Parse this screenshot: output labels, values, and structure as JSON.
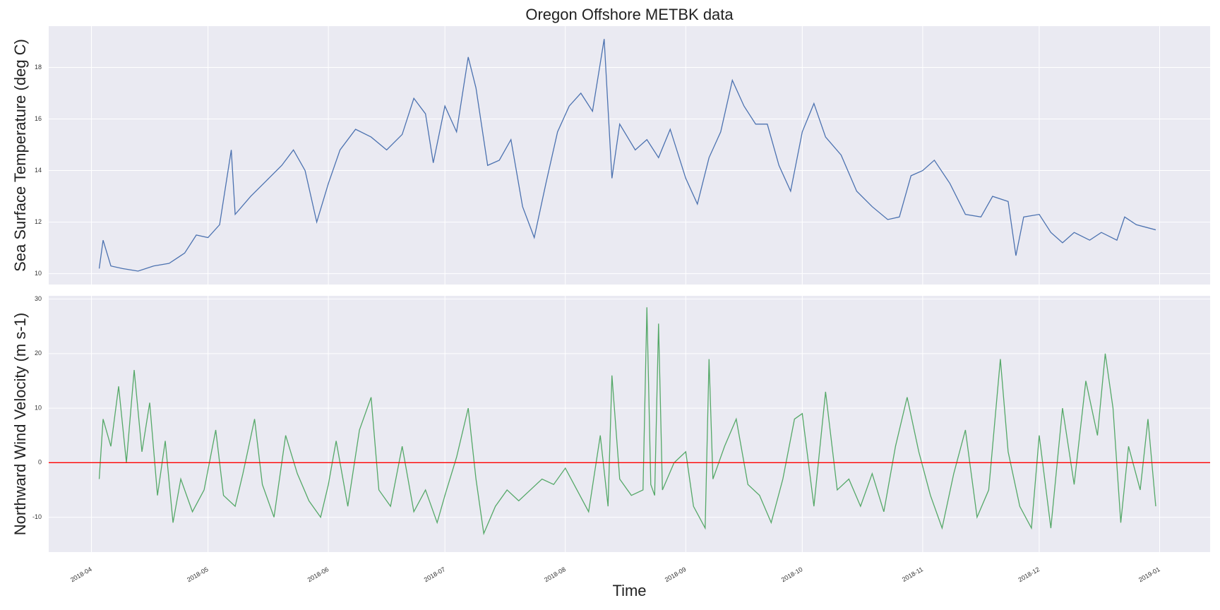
{
  "chart_data": [
    {
      "type": "line",
      "title": "Oregon Offshore METBK data",
      "ylabel": "Sea Surface Temperature (deg C)",
      "ylim": [
        9.58,
        19.6
      ],
      "yticks": [
        10,
        12,
        14,
        16,
        18
      ],
      "grid": true,
      "x": [
        "2018-04-03",
        "2018-04-04",
        "2018-04-06",
        "2018-04-09",
        "2018-04-13",
        "2018-04-17",
        "2018-04-21",
        "2018-04-25",
        "2018-04-28",
        "2018-05-01",
        "2018-05-04",
        "2018-05-07",
        "2018-05-08",
        "2018-05-12",
        "2018-05-16",
        "2018-05-20",
        "2018-05-23",
        "2018-05-26",
        "2018-05-29",
        "2018-06-01",
        "2018-06-04",
        "2018-06-08",
        "2018-06-12",
        "2018-06-16",
        "2018-06-20",
        "2018-06-23",
        "2018-06-26",
        "2018-06-28",
        "2018-07-01",
        "2018-07-04",
        "2018-07-07",
        "2018-07-09",
        "2018-07-12",
        "2018-07-15",
        "2018-07-18",
        "2018-07-21",
        "2018-07-24",
        "2018-07-27",
        "2018-07-30",
        "2018-08-02",
        "2018-08-05",
        "2018-08-08",
        "2018-08-11",
        "2018-08-13",
        "2018-08-15",
        "2018-08-19",
        "2018-08-22",
        "2018-08-25",
        "2018-08-28",
        "2018-09-01",
        "2018-09-04",
        "2018-09-07",
        "2018-09-10",
        "2018-09-13",
        "2018-09-16",
        "2018-09-19",
        "2018-09-22",
        "2018-09-25",
        "2018-09-28",
        "2018-10-01",
        "2018-10-04",
        "2018-10-07",
        "2018-10-11",
        "2018-10-15",
        "2018-10-19",
        "2018-10-23",
        "2018-10-26",
        "2018-10-29",
        "2018-11-01",
        "2018-11-04",
        "2018-11-08",
        "2018-11-12",
        "2018-11-16",
        "2018-11-19",
        "2018-11-23",
        "2018-11-25",
        "2018-11-27",
        "2018-12-01",
        "2018-12-04",
        "2018-12-07",
        "2018-12-10",
        "2018-12-14",
        "2018-12-17",
        "2018-12-21",
        "2018-12-23",
        "2018-12-26",
        "2018-12-31"
      ],
      "series": [
        {
          "color": "#4c72b0",
          "values": [
            10.2,
            11.3,
            10.3,
            10.2,
            10.1,
            10.3,
            10.4,
            10.8,
            11.5,
            11.4,
            11.9,
            14.8,
            12.3,
            13.0,
            13.6,
            14.2,
            14.8,
            14.0,
            12.0,
            13.5,
            14.8,
            15.6,
            15.3,
            14.8,
            15.4,
            16.8,
            16.2,
            14.3,
            16.5,
            15.5,
            18.4,
            17.2,
            14.2,
            14.4,
            15.2,
            12.6,
            11.4,
            13.5,
            15.5,
            16.5,
            17.0,
            16.3,
            19.1,
            13.7,
            15.8,
            14.8,
            15.2,
            14.5,
            15.6,
            13.7,
            12.7,
            14.5,
            15.5,
            17.5,
            16.5,
            15.8,
            15.8,
            14.2,
            13.2,
            15.5,
            16.6,
            15.3,
            14.6,
            13.2,
            12.6,
            12.1,
            12.2,
            13.8,
            14.0,
            14.4,
            13.5,
            12.3,
            12.2,
            13.0,
            12.8,
            10.7,
            12.2,
            12.3,
            11.6,
            11.2,
            11.6,
            11.3,
            11.6,
            11.3,
            12.2,
            11.9,
            11.7
          ]
        }
      ]
    },
    {
      "type": "line",
      "ylabel": "Northward Wind Velocity (m s-1)",
      "xlabel": "Time",
      "ylim": [
        -16.4,
        30.6
      ],
      "yticks": [
        -10,
        0,
        10,
        20,
        30
      ],
      "grid": true,
      "xlim": [
        "2018-03-21",
        "2019-01-14"
      ],
      "xticks": [
        {
          "value": "2018-04-01",
          "label": "2018-04"
        },
        {
          "value": "2018-05-01",
          "label": "2018-05"
        },
        {
          "value": "2018-06-01",
          "label": "2018-06"
        },
        {
          "value": "2018-07-01",
          "label": "2018-07"
        },
        {
          "value": "2018-08-01",
          "label": "2018-08"
        },
        {
          "value": "2018-09-01",
          "label": "2018-09"
        },
        {
          "value": "2018-10-01",
          "label": "2018-10"
        },
        {
          "value": "2018-11-01",
          "label": "2018-11"
        },
        {
          "value": "2018-12-01",
          "label": "2018-12"
        },
        {
          "value": "2019-01-01",
          "label": "2019-01"
        }
      ],
      "hline": {
        "value": 0,
        "color": "#ff0000"
      },
      "x": [
        "2018-04-03",
        "2018-04-04",
        "2018-04-06",
        "2018-04-08",
        "2018-04-10",
        "2018-04-12",
        "2018-04-14",
        "2018-04-16",
        "2018-04-18",
        "2018-04-20",
        "2018-04-22",
        "2018-04-24",
        "2018-04-27",
        "2018-04-30",
        "2018-05-03",
        "2018-05-05",
        "2018-05-08",
        "2018-05-10",
        "2018-05-13",
        "2018-05-15",
        "2018-05-18",
        "2018-05-21",
        "2018-05-24",
        "2018-05-27",
        "2018-05-30",
        "2018-06-01",
        "2018-06-03",
        "2018-06-06",
        "2018-06-09",
        "2018-06-12",
        "2018-06-14",
        "2018-06-17",
        "2018-06-20",
        "2018-06-23",
        "2018-06-26",
        "2018-06-29",
        "2018-07-01",
        "2018-07-04",
        "2018-07-07",
        "2018-07-09",
        "2018-07-11",
        "2018-07-14",
        "2018-07-17",
        "2018-07-20",
        "2018-07-23",
        "2018-07-26",
        "2018-07-29",
        "2018-08-01",
        "2018-08-04",
        "2018-08-07",
        "2018-08-10",
        "2018-08-12",
        "2018-08-13",
        "2018-08-15",
        "2018-08-18",
        "2018-08-21",
        "2018-08-22",
        "2018-08-23",
        "2018-08-24",
        "2018-08-25",
        "2018-08-26",
        "2018-08-29",
        "2018-09-01",
        "2018-09-03",
        "2018-09-06",
        "2018-09-07",
        "2018-09-08",
        "2018-09-11",
        "2018-09-14",
        "2018-09-17",
        "2018-09-20",
        "2018-09-23",
        "2018-09-26",
        "2018-09-29",
        "2018-10-01",
        "2018-10-04",
        "2018-10-07",
        "2018-10-10",
        "2018-10-13",
        "2018-10-16",
        "2018-10-19",
        "2018-10-22",
        "2018-10-25",
        "2018-10-28",
        "2018-10-31",
        "2018-11-03",
        "2018-11-06",
        "2018-11-09",
        "2018-11-12",
        "2018-11-15",
        "2018-11-18",
        "2018-11-21",
        "2018-11-23",
        "2018-11-26",
        "2018-11-29",
        "2018-12-01",
        "2018-12-04",
        "2018-12-07",
        "2018-12-10",
        "2018-12-13",
        "2018-12-16",
        "2018-12-18",
        "2018-12-20",
        "2018-12-22",
        "2018-12-24",
        "2018-12-27",
        "2018-12-29",
        "2018-12-31"
      ],
      "series": [
        {
          "color": "#55a868",
          "values": [
            -3,
            8,
            3,
            14,
            0,
            17,
            2,
            11,
            -6,
            4,
            -11,
            -3,
            -9,
            -5,
            6,
            -6,
            -8,
            -2,
            8,
            -4,
            -10,
            5,
            -2,
            -7,
            -10,
            -4,
            4,
            -8,
            6,
            12,
            -5,
            -8,
            3,
            -9,
            -5,
            -11,
            -6,
            1,
            10,
            -3,
            -13,
            -8,
            -5,
            -7,
            -5,
            -3,
            -4,
            -1,
            -5,
            -9,
            5,
            -8,
            16,
            -3,
            -6,
            -5,
            28.5,
            -4,
            -6,
            25.5,
            -5,
            0,
            2,
            -8,
            -12,
            19,
            -3,
            3,
            8,
            -4,
            -6,
            -11,
            -3,
            8,
            9,
            -8,
            13,
            -5,
            -3,
            -8,
            -2,
            -9,
            3,
            12,
            2,
            -6,
            -12,
            -2,
            6,
            -10,
            -5,
            19,
            2,
            -8,
            -12,
            5,
            -12,
            10,
            -4,
            15,
            5,
            20,
            10,
            -11,
            3,
            -5,
            8,
            -8
          ]
        }
      ]
    }
  ]
}
